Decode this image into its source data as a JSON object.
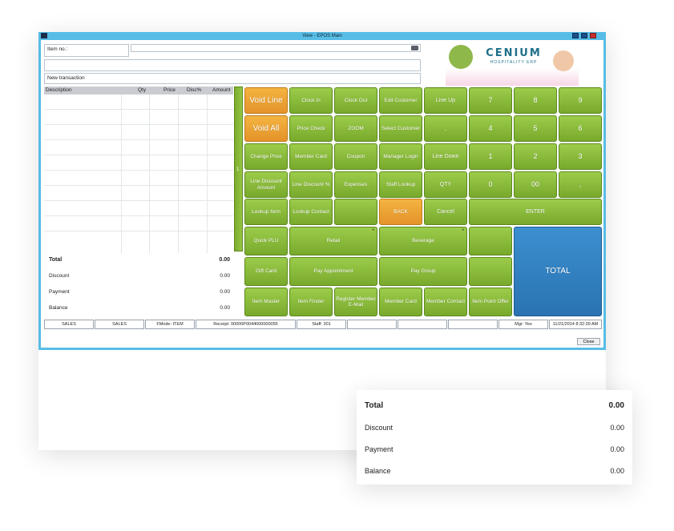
{
  "window": {
    "title": "View - EPOS Main"
  },
  "header": {
    "item_no_label": "Item no.:",
    "transaction_label": "New transaction"
  },
  "grid": {
    "columns": [
      "Description",
      "Qty",
      "Price",
      "Disc%",
      "Amount"
    ]
  },
  "totals": [
    {
      "label": "Total",
      "value": "0.00"
    },
    {
      "label": "Discount",
      "value": "0.00"
    },
    {
      "label": "Payment",
      "value": "0.00"
    },
    {
      "label": "Balance",
      "value": "0.00"
    }
  ],
  "logo": {
    "brand": "CENIUM",
    "tagline": "HOSPITALITY ERP"
  },
  "divider_label": "1",
  "func_buttons": {
    "void_line": "Void Line",
    "clock_in": "Clock In",
    "clock_out": "Clock Out",
    "edit_customer": "Edit Customer",
    "void_all": "Void All",
    "price_check": "Price Check",
    "zoom": "ZOOM",
    "select_customer": "Select Customer",
    "change_price": "Change Price",
    "member_card": "Member Card",
    "coupon": "Coupon",
    "manager_login": "Manager Login",
    "line_discount_amount": "Line Discount Amount",
    "line_discount_pct": "Line Discount %",
    "expenses": "Expenses",
    "staff_lookup": "Staff Lookup",
    "lookup_item": "Lookup Item",
    "lookup_contact": "Lookup Contact",
    "back": "BACK"
  },
  "keypad": {
    "line_up": "Line Up",
    "dot": ".",
    "line_down": "Line Down",
    "qty": "QTY",
    "cancel": "Cancel",
    "enter": "ENTER",
    "k7": "7",
    "k8": "8",
    "k9": "9",
    "k4": "4",
    "k5": "5",
    "k6": "6",
    "k1": "1",
    "k2": "2",
    "k3": "3",
    "k0": "0",
    "k00": "00",
    "comma": ","
  },
  "bottom_buttons": {
    "quick_plu": "Quick PLU",
    "retail": "Retail",
    "beverage": "Beverage",
    "gift_card": "Gift Card",
    "pay_appointment": "Pay Appointment",
    "pay_group": "Pay Group",
    "item_master": "Item Master",
    "item_finder": "Item Finder",
    "register_member_email": "Register Member E-Mail",
    "member_card2": "Member Card",
    "member_contact": "Member Contact",
    "item_point_offer": "Item Point Offer",
    "total": "TOTAL",
    "star": "*"
  },
  "statusbar": [
    "SALES",
    "SALES",
    "FMode: ITEM",
    "Receipt: 00000P0044000000055",
    "Staff: 301",
    "",
    "",
    "",
    "Mgr: Yes",
    "11/21/2014 8:32:39 AM"
  ],
  "close_button": "Close",
  "colors": {
    "green": "#8bbf3c",
    "orange": "#eea335",
    "blue": "#2f7fc0",
    "window_frame": "#57bde6"
  }
}
